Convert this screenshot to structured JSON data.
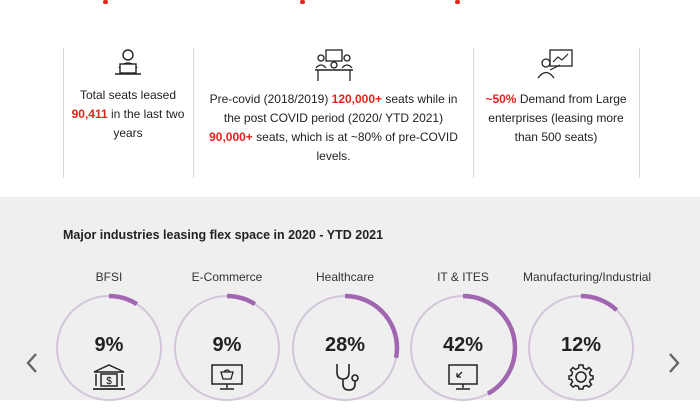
{
  "colors": {
    "accent": "#e2231a",
    "ring": "#d2c6d8",
    "ring_fill": "#a066b0",
    "band": "#efefef"
  },
  "stats": [
    {
      "icon": "laptop-user-icon",
      "parts": [
        {
          "t": "Total seats leased ",
          "hl": false
        },
        {
          "t": "90,411",
          "hl": true
        },
        {
          "t": " in the last two years",
          "hl": false
        }
      ]
    },
    {
      "icon": "desk-workers-icon",
      "parts": [
        {
          "t": "Pre-covid (2018/2019) ",
          "hl": false
        },
        {
          "t": "120,000+",
          "hl": true
        },
        {
          "t": " seats while in the post COVID period (2020/ YTD 2021) ",
          "hl": false
        },
        {
          "t": "90,000+",
          "hl": true
        },
        {
          "t": " seats, which is at ~80% of pre-COVID levels.",
          "hl": false
        }
      ]
    },
    {
      "icon": "presentation-user-icon",
      "parts": [
        {
          "t": "~50%",
          "hl": true
        },
        {
          "t": " Demand from Large enterprises (leasing more than 500 seats)",
          "hl": false
        }
      ]
    }
  ],
  "industries_section": {
    "title": "Major industries leasing flex space in 2020 - YTD 2021",
    "items": [
      {
        "label": "BFSI",
        "value": "9%",
        "fraction": 0.09,
        "icon": "bank-icon"
      },
      {
        "label": "E-Commerce",
        "value": "9%",
        "fraction": 0.09,
        "icon": "shopping-basket-monitor-icon"
      },
      {
        "label": "Healthcare",
        "value": "28%",
        "fraction": 0.28,
        "icon": "stethoscope-icon"
      },
      {
        "label": "IT & ITES",
        "value": "42%",
        "fraction": 0.42,
        "icon": "computer-monitor-icon"
      },
      {
        "label": "Manufacturing/Industrial",
        "value": "12%",
        "fraction": 0.12,
        "icon": "gear-icon"
      }
    ]
  },
  "nav": {
    "prev_icon": "chevron-left-icon",
    "next_icon": "chevron-right-icon"
  }
}
